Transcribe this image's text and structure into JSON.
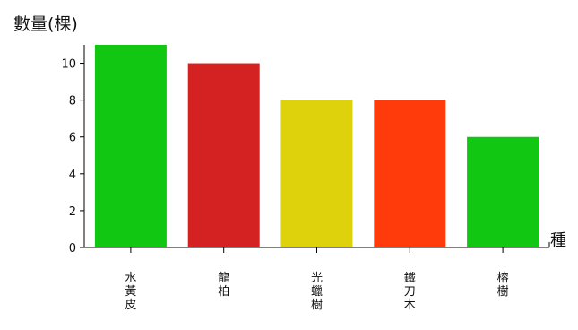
{
  "chart_data": {
    "type": "bar",
    "ylabel": "數量(棵)",
    "xlabel": "種",
    "ylim": [
      0,
      11
    ],
    "yticks": [
      0,
      2,
      4,
      6,
      8,
      10
    ],
    "categories": [
      "水黃皮",
      "龍柏",
      "光蠟樹",
      "鐵刀木",
      "榕樹"
    ],
    "values": [
      11,
      10,
      8,
      8,
      6
    ],
    "colors": [
      "#11c711",
      "#d42121",
      "#ddd20c",
      "#ff3b0c",
      "#11c711"
    ],
    "grid": false,
    "legend": "none"
  }
}
